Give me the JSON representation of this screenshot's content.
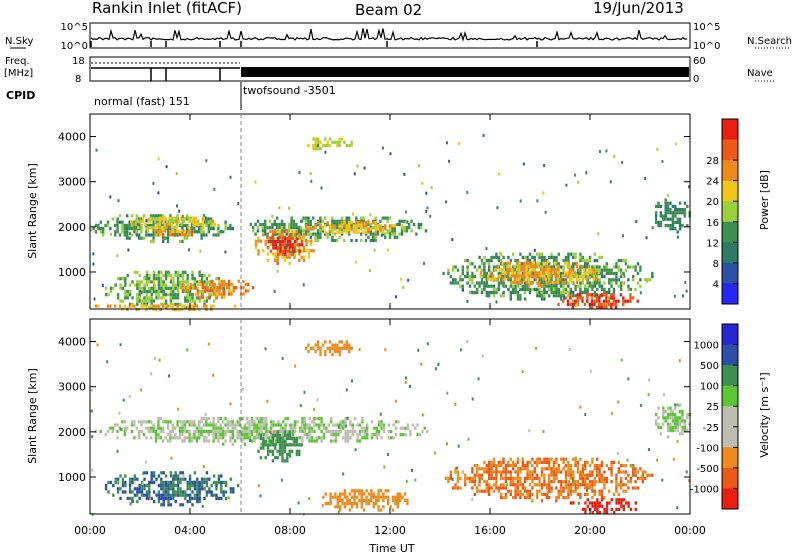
{
  "header": {
    "station": "Rankin Inlet (fitACF)",
    "beam": "Beam 02",
    "date": "19/Jun/2013"
  },
  "top_panels": {
    "nsky_label": "N.Sky",
    "nsky_ticks": [
      "10^5",
      "10^0"
    ],
    "nsearch_label": "N.Search",
    "nsearch_ticks": [
      "10^5",
      "10^0"
    ],
    "freq_label": "Freq.",
    "freq_unit": "[MHz]",
    "freq_ticks": [
      "18",
      "8"
    ],
    "nave_label": "Nave",
    "nave_ticks": [
      "60",
      "0"
    ],
    "cpid_label": "CPID",
    "cpid_modes": [
      "normal (fast) 151",
      "twofsound -3501"
    ]
  },
  "x_axis": {
    "label": "Time UT",
    "ticks": [
      "00:00",
      "04:00",
      "08:00",
      "12:00",
      "16:00",
      "20:00",
      "00:00"
    ]
  },
  "colors": {
    "scale": [
      "#2626f5",
      "#2c4fa8",
      "#2f7a62",
      "#3b8f4f",
      "#9ad13a",
      "#f2c619",
      "#f08a1c",
      "#ec5a16",
      "#e81e12"
    ],
    "velocity_scale": [
      "#e81e12",
      "#ec5a16",
      "#f08a1c",
      "#bdbdb0",
      "#bdbdb0",
      "#5cc734",
      "#3b8f4f",
      "#2c4fa8",
      "#2626d6"
    ]
  },
  "chart_data": [
    {
      "type": "heatmap",
      "name": "power",
      "ylabel": "Slant Range [km]",
      "xlim": [
        0,
        24
      ],
      "ylim": [
        180,
        4500
      ],
      "yticks": [
        1000,
        2000,
        3000,
        4000
      ],
      "colorbar_label": "Power [dB]",
      "colorbar_ticks": [
        "4",
        "8",
        "12",
        "16",
        "20",
        "24",
        "28"
      ],
      "regions": [
        {
          "t0": 0.0,
          "t1": 5.8,
          "r0": 1700,
          "r1": 2350,
          "v": 12
        },
        {
          "t0": 1.5,
          "t1": 5.0,
          "r0": 1900,
          "r1": 2300,
          "v": 18
        },
        {
          "t0": 2.3,
          "t1": 4.2,
          "r0": 1800,
          "r1": 2000,
          "v": 22
        },
        {
          "t0": 6.0,
          "t1": 13.5,
          "r0": 1700,
          "r1": 2300,
          "v": 12
        },
        {
          "t0": 8.5,
          "t1": 12.5,
          "r0": 1850,
          "r1": 2200,
          "v": 19
        },
        {
          "t0": 6.5,
          "t1": 9.0,
          "r0": 1200,
          "r1": 2000,
          "v": 21
        },
        {
          "t0": 7.0,
          "t1": 8.5,
          "r0": 1400,
          "r1": 1850,
          "v": 27
        },
        {
          "t0": 0.5,
          "t1": 5.5,
          "r0": 200,
          "r1": 1100,
          "v": 14
        },
        {
          "t0": 3.5,
          "t1": 6.5,
          "r0": 450,
          "r1": 900,
          "v": 22
        },
        {
          "t0": 14.0,
          "t1": 22.5,
          "r0": 400,
          "r1": 1500,
          "v": 12
        },
        {
          "t0": 15.5,
          "t1": 20.5,
          "r0": 700,
          "r1": 1300,
          "v": 20
        },
        {
          "t0": 18.5,
          "t1": 22.0,
          "r0": 200,
          "r1": 600,
          "v": 26
        },
        {
          "t0": 8.5,
          "t1": 10.5,
          "r0": 3700,
          "r1": 4050,
          "v": 16
        },
        {
          "t0": 22.5,
          "t1": 24.0,
          "r0": 1900,
          "r1": 2700,
          "v": 10
        },
        {
          "t0": 0.0,
          "t1": 6.0,
          "r0": 180,
          "r1": 350,
          "v": 20
        }
      ]
    },
    {
      "type": "heatmap",
      "name": "velocity",
      "ylabel": "Slant Range [km]",
      "xlim": [
        0,
        24
      ],
      "ylim": [
        180,
        4500
      ],
      "yticks": [
        1000,
        2000,
        3000,
        4000
      ],
      "colorbar_label": "Velocity [m s⁻¹]",
      "colorbar_ticks": [
        "1000",
        "500",
        "100",
        "25",
        "-25",
        "-100",
        "-500",
        "-1000"
      ],
      "regions": [
        {
          "t0": 0.0,
          "t1": 13.5,
          "r0": 1750,
          "r1": 2400,
          "v": 0
        },
        {
          "t0": 6.5,
          "t1": 8.5,
          "r0": 1350,
          "r1": 2100,
          "v": 150
        },
        {
          "t0": 0.5,
          "t1": 6.0,
          "r0": 400,
          "r1": 1200,
          "v": 300
        },
        {
          "t0": 14.0,
          "t1": 22.5,
          "r0": 500,
          "r1": 1500,
          "v": -300
        },
        {
          "t0": 19.0,
          "t1": 22.0,
          "r0": 200,
          "r1": 600,
          "v": -800
        },
        {
          "t0": 9.0,
          "t1": 13.0,
          "r0": 250,
          "r1": 800,
          "v": -200
        },
        {
          "t0": 8.5,
          "t1": 10.5,
          "r0": 3700,
          "r1": 4100,
          "v": -200
        },
        {
          "t0": 22.5,
          "t1": 24.0,
          "r0": 1900,
          "r1": 2700,
          "v": 0
        }
      ]
    }
  ]
}
